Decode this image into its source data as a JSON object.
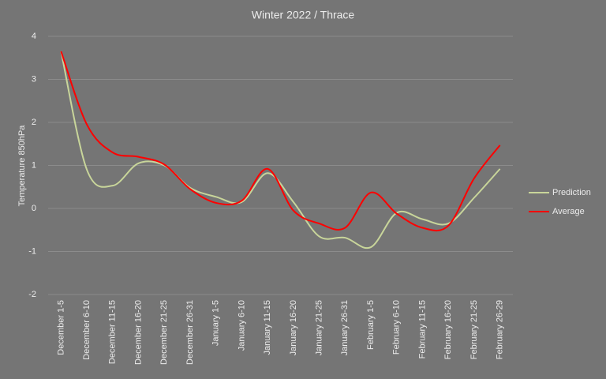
{
  "chart_data": {
    "type": "line",
    "title": "Winter 2022 / Thrace",
    "y_label": "Temperature  850hPa",
    "categories": [
      "December 1-5",
      "December 6-10",
      "December 11-15",
      "December 16-20",
      "December 21-25",
      "December 26-31",
      "January 1-5",
      "January 6-10",
      "January 11-15",
      "January 16-20",
      "January 21-25",
      "January 26-31",
      "February 1-5",
      "February 6-10",
      "February 11-15",
      "February 16-20",
      "February 21-25",
      "February 26-29"
    ],
    "series": [
      {
        "name": "Prediction",
        "color": "#c8d59a",
        "values": [
          3.65,
          0.9,
          0.53,
          1.05,
          1.0,
          0.48,
          0.27,
          0.15,
          0.82,
          0.15,
          -0.65,
          -0.68,
          -0.9,
          -0.1,
          -0.25,
          -0.35,
          0.25,
          0.92
        ]
      },
      {
        "name": "Average",
        "color": "#ff0000",
        "values": [
          3.65,
          1.95,
          1.3,
          1.2,
          1.02,
          0.45,
          0.13,
          0.18,
          0.92,
          -0.05,
          -0.35,
          -0.45,
          0.37,
          -0.12,
          -0.45,
          -0.4,
          0.7,
          1.47
        ]
      }
    ],
    "ylim": [
      -2,
      4
    ],
    "yticks": [
      -2,
      -1,
      0,
      1,
      2,
      3,
      4
    ],
    "grid": true,
    "legend": "right"
  }
}
